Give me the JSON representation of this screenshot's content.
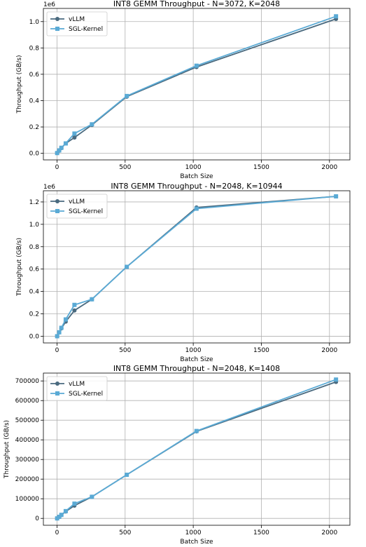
{
  "colors": {
    "vllm": "#4a6a7f",
    "sgl": "#5aaad5",
    "grid": "#b0b0b0"
  },
  "chart_data": [
    {
      "type": "line",
      "title": "INT8 GEMM Throughput - N=3072, K=2048",
      "xlabel": "Batch Size",
      "ylabel": "Throughput (GB/s)",
      "y_offset_text": "1e6",
      "xlim": [
        -100,
        2150
      ],
      "ylim": [
        -0.05,
        1.1
      ],
      "xticks": [
        0,
        500,
        1000,
        1500,
        2000
      ],
      "xtick_labels": [
        "0",
        "500",
        "1000",
        "1500",
        "2000"
      ],
      "yticks": [
        0.0,
        0.2,
        0.4,
        0.6,
        0.8,
        1.0
      ],
      "ytick_labels": [
        "0.0",
        "0.2",
        "0.4",
        "0.6",
        "0.8",
        "1.0"
      ],
      "grid": true,
      "legend": "top-left",
      "series": [
        {
          "name": "vLLM",
          "x": [
            1,
            16,
            32,
            64,
            128,
            256,
            512,
            1024,
            2048
          ],
          "y": [
            0.002,
            0.02,
            0.04,
            0.075,
            0.12,
            0.215,
            0.43,
            0.655,
            1.02
          ]
        },
        {
          "name": "SGL-Kernel",
          "x": [
            1,
            16,
            32,
            64,
            128,
            256,
            512,
            1024,
            2048
          ],
          "y": [
            0.002,
            0.022,
            0.042,
            0.075,
            0.15,
            0.22,
            0.435,
            0.665,
            1.04
          ]
        }
      ]
    },
    {
      "type": "line",
      "title": "INT8 GEMM Throughput - N=2048, K=10944",
      "xlabel": "Batch Size",
      "ylabel": "Throughput (GB/s)",
      "y_offset_text": "1e6",
      "xlim": [
        -100,
        2150
      ],
      "ylim": [
        -0.06,
        1.3
      ],
      "xticks": [
        0,
        500,
        1000,
        1500,
        2000
      ],
      "xtick_labels": [
        "0",
        "500",
        "1000",
        "1500",
        "2000"
      ],
      "yticks": [
        0.0,
        0.2,
        0.4,
        0.6,
        0.8,
        1.0,
        1.2
      ],
      "ytick_labels": [
        "0.0",
        "0.2",
        "0.4",
        "0.6",
        "0.8",
        "1.0",
        "1.2"
      ],
      "grid": true,
      "legend": "top-left",
      "series": [
        {
          "name": "vLLM",
          "x": [
            1,
            16,
            32,
            64,
            128,
            256,
            512,
            1024,
            2048
          ],
          "y": [
            0.0,
            0.035,
            0.07,
            0.13,
            0.23,
            0.33,
            0.62,
            1.15,
            1.25
          ]
        },
        {
          "name": "SGL-Kernel",
          "x": [
            1,
            16,
            32,
            64,
            128,
            256,
            512,
            1024,
            2048
          ],
          "y": [
            0.0,
            0.035,
            0.075,
            0.15,
            0.28,
            0.33,
            0.62,
            1.14,
            1.25
          ]
        }
      ]
    },
    {
      "type": "line",
      "title": "INT8 GEMM Throughput - N=2048, K=1408",
      "xlabel": "Batch Size",
      "ylabel": "Throughput (GB/s)",
      "y_offset_text": "",
      "xlim": [
        -100,
        2150
      ],
      "ylim": [
        -35000,
        740000
      ],
      "xticks": [
        0,
        500,
        1000,
        1500,
        2000
      ],
      "xtick_labels": [
        "0",
        "500",
        "1000",
        "1500",
        "2000"
      ],
      "yticks": [
        0,
        100000,
        200000,
        300000,
        400000,
        500000,
        600000,
        700000
      ],
      "ytick_labels": [
        "0",
        "100000",
        "200000",
        "300000",
        "400000",
        "500000",
        "600000",
        "700000"
      ],
      "grid": true,
      "legend": "top-left",
      "series": [
        {
          "name": "vLLM",
          "x": [
            1,
            16,
            32,
            64,
            128,
            256,
            512,
            1024,
            2048
          ],
          "y": [
            0,
            8000,
            17000,
            35000,
            65000,
            110000,
            222000,
            443000,
            695000
          ]
        },
        {
          "name": "SGL-Kernel",
          "x": [
            1,
            16,
            32,
            64,
            128,
            256,
            512,
            1024,
            2048
          ],
          "y": [
            0,
            8000,
            18000,
            37000,
            75000,
            110000,
            222000,
            445000,
            707000
          ]
        }
      ]
    }
  ]
}
